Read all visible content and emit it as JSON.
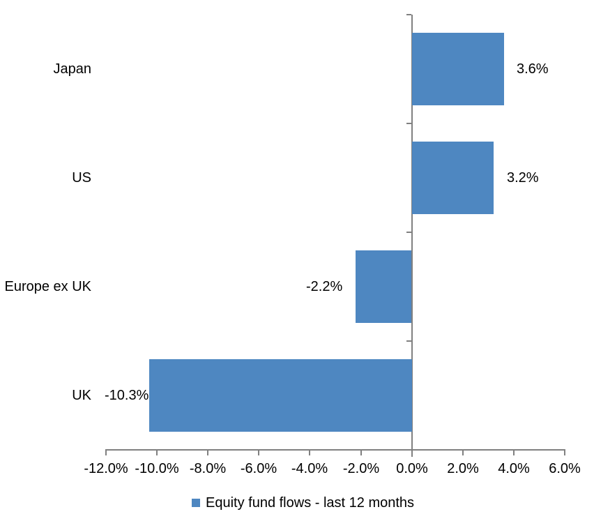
{
  "chart_data": {
    "type": "bar",
    "orientation": "horizontal",
    "title": "",
    "xlabel": "",
    "ylabel": "",
    "categories": [
      "Japan",
      "US",
      "Europe ex UK",
      "UK"
    ],
    "values": [
      3.6,
      3.2,
      -2.2,
      -10.3
    ],
    "data_labels": [
      "3.6%",
      "3.2%",
      "-2.2%",
      "-10.3%"
    ],
    "series": [
      {
        "name": "Equity fund flows - last 12 months",
        "values": [
          3.6,
          3.2,
          -2.2,
          -10.3
        ]
      }
    ],
    "xlim": [
      -12,
      6
    ],
    "x_tick_step": 2,
    "x_tick_labels": [
      "-12.0%",
      "-10.0%",
      "-8.0%",
      "-6.0%",
      "-4.0%",
      "-2.0%",
      "0.0%",
      "2.0%",
      "4.0%",
      "6.0%"
    ],
    "grid": false,
    "legend_position": "bottom",
    "colors": {
      "bar": "#4E87C1",
      "axis": "#808080",
      "text": "#000000",
      "background": "#FFFFFF"
    }
  },
  "legend": {
    "label": "Equity fund flows - last 12 months",
    "swatch_color": "#4E87C1"
  }
}
